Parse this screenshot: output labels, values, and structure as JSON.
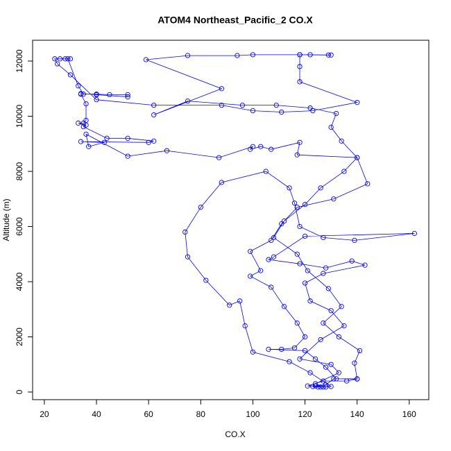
{
  "chart_data": {
    "type": "scatter",
    "title": "ATOM4 Northeast_Pacific_2 CO.X",
    "x_label": "CO.X",
    "y_label": "Altitude (m)",
    "color": "#0000ff",
    "lines": true,
    "xlim": [
      15.5,
      167.5
    ],
    "ylim": [
      -277,
      12755
    ],
    "xticks": [
      20,
      40,
      60,
      80,
      100,
      120,
      140,
      160
    ],
    "yticks": [
      0,
      2000,
      4000,
      6000,
      8000,
      10000,
      12000
    ],
    "x": [
      127,
      125,
      123,
      128,
      131,
      140,
      139,
      141,
      133,
      127,
      134,
      129,
      121,
      117,
      108,
      112,
      120,
      126,
      135,
      140,
      134,
      130,
      132,
      122,
      109,
      96,
      75,
      62,
      88,
      59,
      75,
      94,
      100,
      118,
      122,
      130,
      129,
      118,
      118,
      118,
      140,
      123,
      111,
      100,
      88,
      62,
      40,
      30,
      25,
      24,
      26,
      28,
      30,
      29,
      33,
      35,
      40,
      45,
      52,
      52,
      40,
      34,
      34,
      36,
      36,
      35,
      33,
      36,
      35,
      44,
      52,
      62,
      60,
      34,
      43,
      37,
      36,
      52,
      67,
      87,
      100,
      99,
      103,
      107,
      118,
      117,
      140,
      144,
      131,
      117,
      111,
      107,
      99,
      103,
      99,
      107,
      112,
      117,
      120,
      116,
      111,
      106,
      120,
      124,
      128,
      132,
      140,
      136,
      127,
      121,
      124,
      128,
      130,
      122,
      114,
      100,
      97,
      95,
      91,
      82,
      75,
      74,
      80,
      88,
      105,
      114,
      116,
      118,
      127,
      139,
      162,
      120,
      108,
      106,
      118,
      128,
      138,
      143,
      127,
      120,
      122,
      130,
      135,
      126,
      118,
      130,
      133,
      124,
      126
    ],
    "y": [
      180,
      180,
      200,
      260,
      480,
      480,
      1050,
      1500,
      2000,
      2500,
      3100,
      3750,
      4400,
      5000,
      5600,
      6200,
      6800,
      7400,
      8000,
      8500,
      9100,
      9600,
      10100,
      10300,
      10400,
      10400,
      10550,
      10050,
      11000,
      12050,
      12200,
      12200,
      12230,
      12230,
      12230,
      12220,
      12220,
      12230,
      11800,
      11250,
      10500,
      10200,
      10150,
      10200,
      10400,
      10400,
      10600,
      11500,
      11900,
      12080,
      12080,
      12080,
      12080,
      12080,
      11100,
      10800,
      10800,
      10780,
      10780,
      10700,
      10780,
      10820,
      10800,
      10450,
      9850,
      9750,
      9750,
      9680,
      9620,
      9200,
      9200,
      9100,
      9050,
      9080,
      9050,
      8900,
      9350,
      8550,
      8750,
      8500,
      8900,
      8800,
      8900,
      8800,
      9050,
      8600,
      8500,
      7550,
      7000,
      6700,
      6100,
      5500,
      5100,
      4400,
      4200,
      3800,
      3100,
      2500,
      2000,
      1600,
      1550,
      1550,
      1500,
      1200,
      900,
      480,
      470,
      400,
      400,
      220,
      220,
      180,
      200,
      700,
      1100,
      1450,
      2400,
      3300,
      3150,
      4050,
      4900,
      5800,
      6700,
      7600,
      8000,
      7400,
      6850,
      6000,
      5600,
      5500,
      5750,
      5650,
      4900,
      4800,
      4650,
      4500,
      4750,
      4600,
      4300,
      3950,
      3300,
      2950,
      2400,
      1900,
      1200,
      1000,
      700,
      300,
      180
    ]
  }
}
